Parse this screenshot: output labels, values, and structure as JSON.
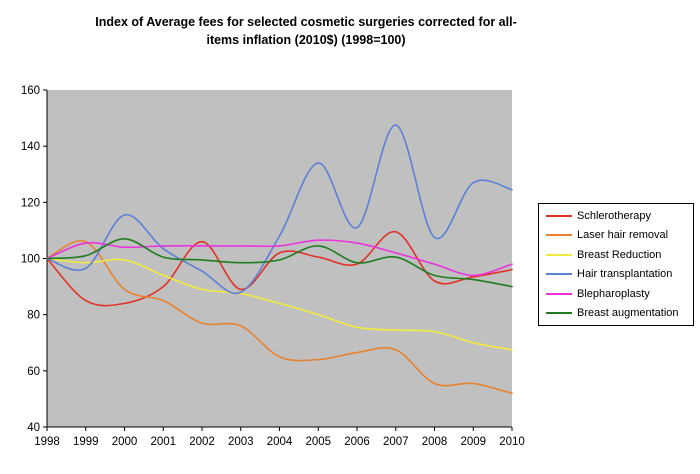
{
  "title": {
    "line1": "Index of Average fees for selected cosmetic surgeries corrected for all-",
    "line2": "items inflation (2010$) (1998=100)"
  },
  "chart_data": {
    "type": "line",
    "smoothed": true,
    "grid": false,
    "plot_bg": "#c0c0c0",
    "axis_color": "#000000",
    "legend_position": "right",
    "ylim": [
      40,
      160
    ],
    "yticks": [
      "160",
      "140",
      "120",
      "100",
      "80",
      "60",
      "40"
    ],
    "ytick_values": [
      160,
      140,
      120,
      100,
      80,
      60,
      40
    ],
    "categories": [
      "1998",
      "1999",
      "2000",
      "2001",
      "2002",
      "2003",
      "2004",
      "2005",
      "2006",
      "2007",
      "2008",
      "2009",
      "2010"
    ],
    "series": [
      {
        "name": "Schlerotherapy",
        "color": "#e23227",
        "values": [
          100,
          85,
          84,
          90,
          106,
          89,
          102,
          100.5,
          98,
          109.5,
          92,
          93.5,
          96
        ]
      },
      {
        "name": "Laser hair removal",
        "color": "#e8812c",
        "values": [
          100,
          106,
          89,
          85,
          77,
          76,
          65,
          64,
          66.5,
          67.5,
          55.5,
          55.5,
          52
        ]
      },
      {
        "name": "Breast Reduction",
        "color": "#f1ea3e",
        "values": [
          100,
          98.5,
          99.5,
          94,
          89,
          87.5,
          84,
          80,
          75.5,
          74.5,
          74,
          70,
          67.5
        ]
      },
      {
        "name": "Hair transplantation",
        "color": "#5c80d5",
        "values": [
          100,
          96.5,
          115.5,
          103.5,
          95.5,
          88,
          108,
          134,
          111,
          147.5,
          107.5,
          127,
          124.5
        ]
      },
      {
        "name": "Blepharoplasty",
        "color": "#ea33dd",
        "values": [
          100,
          105.5,
          104,
          104.5,
          104.5,
          104.5,
          104.5,
          106.5,
          105.5,
          102,
          98,
          94,
          98
        ]
      },
      {
        "name": "Breast augmentation",
        "color": "#1f7d1f",
        "values": [
          100,
          101,
          107,
          100.5,
          99.5,
          98.5,
          99.5,
          104.5,
          98.5,
          100.5,
          94,
          92.5,
          90
        ]
      }
    ]
  }
}
